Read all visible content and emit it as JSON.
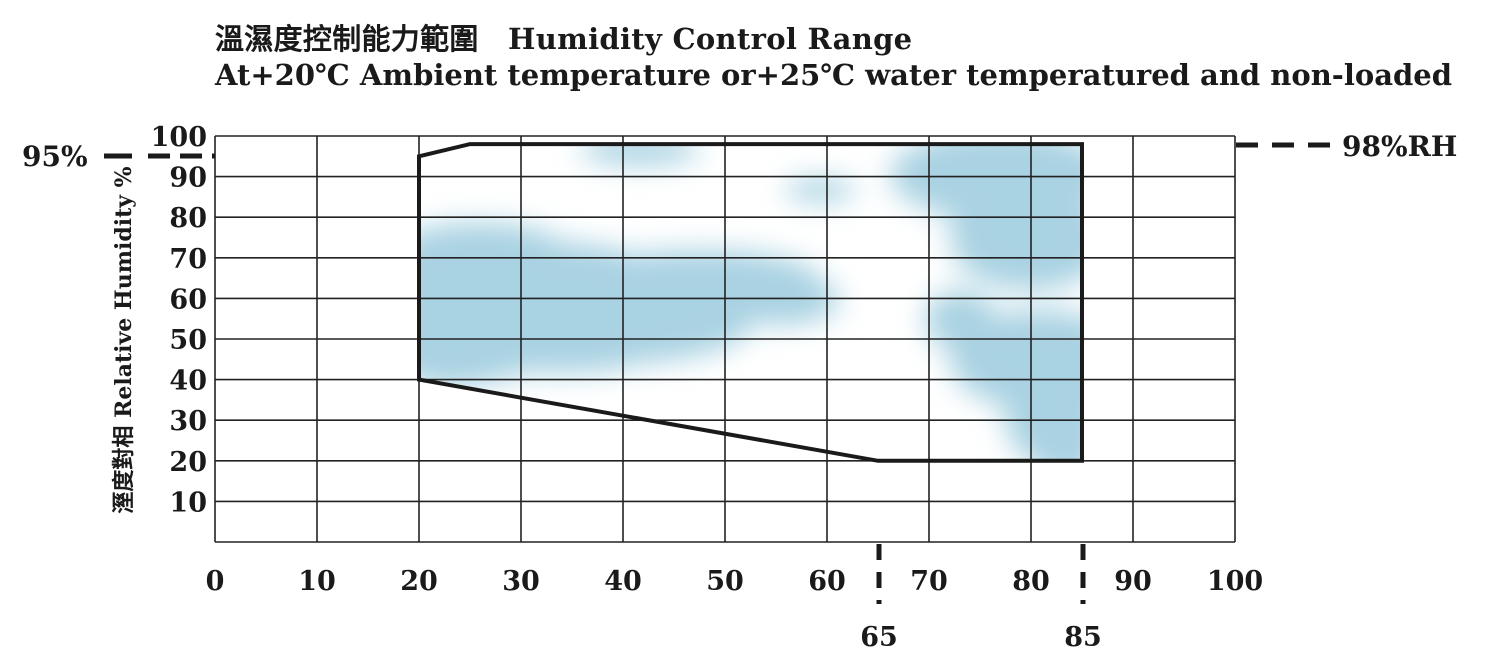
{
  "chart_data": {
    "type": "area",
    "title": "溫濕度控制能力範圍　Humidity Control Range",
    "subtitle": "At+20℃  Ambient temperature or+25℃ water temperatured  and non-loaded",
    "ylabel": "溼度對相 Relative Humidity %",
    "xlabel": "",
    "xlim": [
      0,
      100
    ],
    "ylim": [
      0,
      100
    ],
    "x_ticks": [
      0,
      10,
      20,
      30,
      40,
      50,
      60,
      70,
      80,
      90,
      100
    ],
    "y_ticks": [
      10,
      20,
      30,
      40,
      50,
      60,
      70,
      80,
      90,
      100
    ],
    "grid": true,
    "region": {
      "x": [
        20,
        20,
        25,
        85,
        85,
        65,
        20
      ],
      "y": [
        40,
        95,
        98,
        98,
        20,
        20,
        40
      ]
    },
    "fill_color": "#a9d2e2",
    "line_color": "#1a1a1a",
    "annotations": {
      "left_marker": "95%",
      "right_marker": "98%RH",
      "x_marker_65": "65",
      "x_marker_85": "85"
    }
  }
}
